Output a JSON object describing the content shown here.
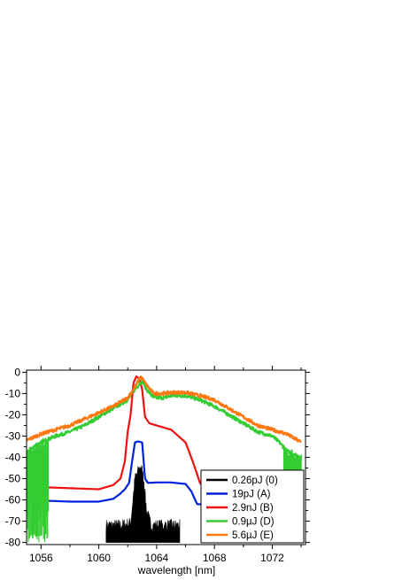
{
  "chart_data": {
    "type": "line",
    "title": "",
    "xlabel": "wavelength [nm]",
    "ylabel": "",
    "xlim": [
      1055,
      1074.3
    ],
    "ylim": [
      -81,
      1
    ],
    "x_ticks": [
      1056,
      1060,
      1064,
      1068,
      1072
    ],
    "x_tick_labels": [
      "1056",
      "1060",
      "1064",
      "1068",
      "1072"
    ],
    "y_ticks": [
      0,
      -10,
      -20,
      -30,
      -40,
      -50,
      -60,
      -70,
      -80
    ],
    "y_tick_labels": [
      "0",
      "-10",
      "-20",
      "-30",
      "-40",
      "-50",
      "-60",
      "-70",
      "-80"
    ],
    "grid": false,
    "legend_position": "bottom-right",
    "series": [
      {
        "name": "0.26pJ (0)",
        "color": "#000000",
        "style": "noisy-filled",
        "x": [
          1060.5,
          1061.5,
          1062.2,
          1062.5,
          1062.7,
          1062.9,
          1063.1,
          1063.3,
          1063.6,
          1064.5,
          1065.6
        ],
        "y": [
          -72,
          -72,
          -71,
          -50,
          -47,
          -44,
          -50,
          -65,
          -72,
          -72,
          -72
        ]
      },
      {
        "name": "19pJ (A)",
        "color": "#0022dd",
        "x": [
          1055,
          1056,
          1058,
          1060,
          1061,
          1061.5,
          1061.8,
          1062.1,
          1062.3,
          1062.5,
          1062.7,
          1063.0,
          1063.2,
          1063.4,
          1064,
          1065,
          1066,
          1066.4,
          1066.8,
          1068,
          1070,
          1072,
          1074
        ],
        "y": [
          -60,
          -60.3,
          -60.8,
          -60.8,
          -59.5,
          -57,
          -55,
          -52,
          -42,
          -33,
          -32.5,
          -33,
          -50,
          -52,
          -51.8,
          -51.8,
          -52.5,
          -56,
          -62,
          -62.3,
          -62.7,
          -63.2,
          -63.8
        ]
      },
      {
        "name": "2.9nJ (B)",
        "color": "#ee1111",
        "x": [
          1055,
          1056,
          1058,
          1060,
          1061,
          1061.5,
          1061.8,
          1062.0,
          1062.2,
          1062.4,
          1062.6,
          1062.8,
          1063.0,
          1063.2,
          1063.5,
          1064,
          1065,
          1066,
          1066.5,
          1067,
          1067.5,
          1068,
          1070,
          1072,
          1074
        ],
        "y": [
          -53.5,
          -54,
          -54.5,
          -55,
          -53,
          -50,
          -42,
          -28,
          -20,
          -5,
          -2,
          -3,
          -8,
          -21,
          -24,
          -25,
          -27,
          -33,
          -42,
          -52,
          -56,
          -57,
          -57.3,
          -57.5,
          -58
        ]
      },
      {
        "name": "0.9µJ (D)",
        "color": "#33cc33",
        "style": "noisy-edges",
        "x": [
          1055,
          1055.5,
          1056,
          1057,
          1058,
          1059,
          1060,
          1061,
          1062,
          1062.5,
          1063,
          1063.3,
          1063.8,
          1064.5,
          1065,
          1066,
          1067,
          1068,
          1069,
          1070,
          1071,
          1072,
          1072.5,
          1073,
          1074
        ],
        "y": [
          -38,
          -35,
          -33,
          -30,
          -28,
          -25,
          -21,
          -17,
          -13,
          -8,
          -4,
          -8,
          -12,
          -12,
          -11,
          -11,
          -13,
          -16,
          -20,
          -24,
          -28,
          -30,
          -33,
          -37,
          -40
        ]
      },
      {
        "name": "5.6µJ (E)",
        "color": "#ff7711",
        "x": [
          1055,
          1055.5,
          1056,
          1057,
          1058,
          1059,
          1060,
          1061,
          1062,
          1062.5,
          1062.9,
          1063.3,
          1063.8,
          1064.5,
          1065,
          1066,
          1067,
          1068,
          1069,
          1070,
          1071,
          1072,
          1072.5,
          1073,
          1073.5,
          1074
        ],
        "y": [
          -32,
          -30.5,
          -29,
          -27,
          -25,
          -22,
          -19,
          -16,
          -12,
          -7,
          -2,
          -6,
          -10,
          -10,
          -9.5,
          -9.5,
          -11,
          -13,
          -17,
          -21,
          -25,
          -27,
          -28,
          -29,
          -31,
          -33
        ]
      }
    ]
  }
}
